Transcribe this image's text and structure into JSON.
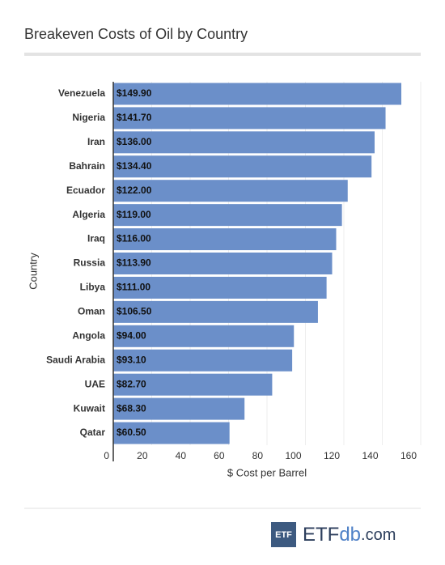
{
  "chart_data": {
    "type": "bar",
    "orientation": "horizontal",
    "title": "Breakeven Costs of Oil by Country",
    "categories": [
      "Venezuela",
      "Nigeria",
      "Iran",
      "Bahrain",
      "Ecuador",
      "Algeria",
      "Iraq",
      "Russia",
      "Libya",
      "Oman",
      "Angola",
      "Saudi Arabia",
      "UAE",
      "Kuwait",
      "Qatar"
    ],
    "values": [
      149.9,
      141.7,
      136,
      134.4,
      122,
      119,
      116,
      113.9,
      111,
      106.5,
      94,
      93.1,
      82.7,
      68.3,
      60.5
    ],
    "value_labels": [
      "$149.90",
      "$141.70",
      "$136.00",
      "$134.40",
      "$122.00",
      "$119.00",
      "$116.00",
      "$113.90",
      "$111.00",
      "$106.50",
      "$94.00",
      "$93.10",
      "$82.70",
      "$68.30",
      "$60.50"
    ],
    "color": "#6b8fc9",
    "xlabel": "$ Cost per Barrel",
    "ylabel": "Country",
    "xlim": [
      0,
      160
    ],
    "xticks": [
      0,
      20,
      40,
      60,
      80,
      100,
      120,
      140,
      160
    ],
    "grid": true
  },
  "footer": {
    "badge": "ETF",
    "brand": [
      "ETF",
      "db",
      ".com"
    ]
  }
}
